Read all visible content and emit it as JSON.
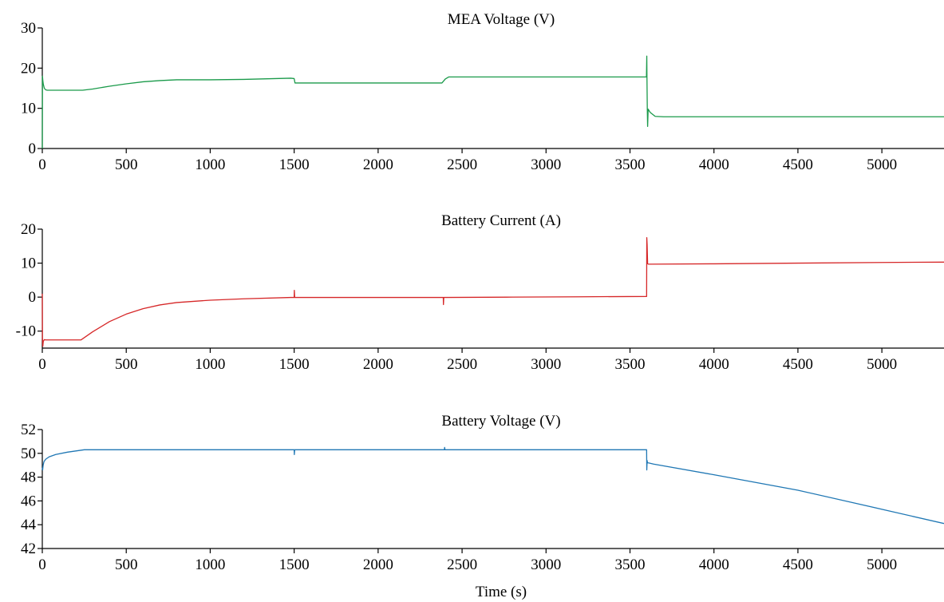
{
  "chart_data": [
    {
      "type": "line",
      "title": "MEA Voltage (V)",
      "xlabel": "",
      "ylabel": "",
      "xlim": [
        0,
        5370
      ],
      "ylim": [
        0,
        30
      ],
      "xticks": [
        0,
        500,
        1000,
        1500,
        2000,
        2500,
        3000,
        3500,
        4000,
        4500,
        5000
      ],
      "yticks": [
        0,
        10,
        20,
        30
      ],
      "ytick_labels": [
        "0",
        "10",
        "20",
        "30"
      ],
      "color": "#1a9a4a",
      "x": [
        0,
        1,
        3,
        6,
        12,
        20,
        30,
        100,
        240,
        300,
        400,
        500,
        600,
        700,
        800,
        1000,
        1200,
        1480,
        1500,
        1505,
        1800,
        2100,
        2380,
        2400,
        2420,
        2800,
        3200,
        3598,
        3600,
        3601,
        3603,
        3605,
        3608,
        3620,
        3650,
        3700,
        4000,
        4500,
        5000,
        5370
      ],
      "y": [
        0,
        18,
        17,
        16,
        15,
        14.6,
        14.5,
        14.5,
        14.5,
        14.8,
        15.5,
        16.1,
        16.6,
        16.9,
        17.1,
        17.1,
        17.2,
        17.5,
        17.4,
        16.3,
        16.3,
        16.3,
        16.3,
        17.3,
        17.8,
        17.8,
        17.8,
        17.8,
        23,
        17.8,
        10,
        5.5,
        9.8,
        9,
        8,
        7.9,
        7.9,
        7.9,
        7.9,
        7.9
      ]
    },
    {
      "type": "line",
      "title": "Battery Current (A)",
      "xlabel": "",
      "ylabel": "",
      "xlim": [
        0,
        5370
      ],
      "ylim": [
        -15,
        20
      ],
      "xticks": [
        0,
        500,
        1000,
        1500,
        2000,
        2500,
        3000,
        3500,
        4000,
        4500,
        5000
      ],
      "yticks": [
        -10,
        0,
        10,
        20
      ],
      "ytick_labels": [
        "-10",
        "0",
        "10",
        "20"
      ],
      "color": "#d62728",
      "x": [
        0,
        1,
        3,
        6,
        12,
        20,
        30,
        100,
        230,
        300,
        400,
        500,
        600,
        700,
        800,
        1000,
        1200,
        1480,
        1500,
        1501,
        1503,
        1800,
        2100,
        2388,
        2389,
        2391,
        2800,
        3200,
        3599,
        3600,
        3602,
        3605,
        3610,
        4000,
        4500,
        5000,
        5370
      ],
      "y": [
        1,
        -12,
        -14.5,
        -13,
        -12.5,
        -12.6,
        -12.6,
        -12.6,
        -12.6,
        -10.2,
        -7.2,
        -5,
        -3.4,
        -2.3,
        -1.6,
        -0.9,
        -0.5,
        -0.1,
        -0.1,
        2,
        -0.1,
        -0.1,
        -0.1,
        -0.1,
        -2.2,
        -0.1,
        0,
        0.1,
        0.2,
        17.5,
        15.5,
        9.8,
        9.7,
        9.8,
        10,
        10.2,
        10.3
      ]
    },
    {
      "type": "line",
      "title": "Battery Voltage (V)",
      "xlabel": "Time (s)",
      "ylabel": "",
      "xlim": [
        0,
        5370
      ],
      "ylim": [
        42,
        52
      ],
      "xticks": [
        0,
        500,
        1000,
        1500,
        2000,
        2500,
        3000,
        3500,
        4000,
        4500,
        5000
      ],
      "yticks": [
        42,
        44,
        46,
        48,
        50,
        52
      ],
      "ytick_labels": [
        "42",
        "44",
        "46",
        "48",
        "50",
        "52"
      ],
      "color": "#1f77b4",
      "x": [
        0,
        2,
        5,
        10,
        20,
        40,
        80,
        150,
        250,
        300,
        600,
        1000,
        1400,
        1500,
        1501,
        1503,
        1800,
        2100,
        2395,
        2396,
        2398,
        2800,
        3200,
        3599,
        3600,
        3602,
        3604,
        3610,
        3640,
        4000,
        4500,
        5000,
        5370
      ],
      "y": [
        48.8,
        48.6,
        49,
        49.3,
        49.5,
        49.7,
        49.9,
        50.1,
        50.3,
        50.3,
        50.3,
        50.3,
        50.3,
        50.3,
        49.9,
        50.3,
        50.3,
        50.3,
        50.3,
        50.5,
        50.3,
        50.3,
        50.3,
        50.3,
        48.6,
        49.4,
        49.2,
        49.2,
        49.1,
        48.2,
        46.9,
        45.3,
        44.1
      ]
    }
  ]
}
